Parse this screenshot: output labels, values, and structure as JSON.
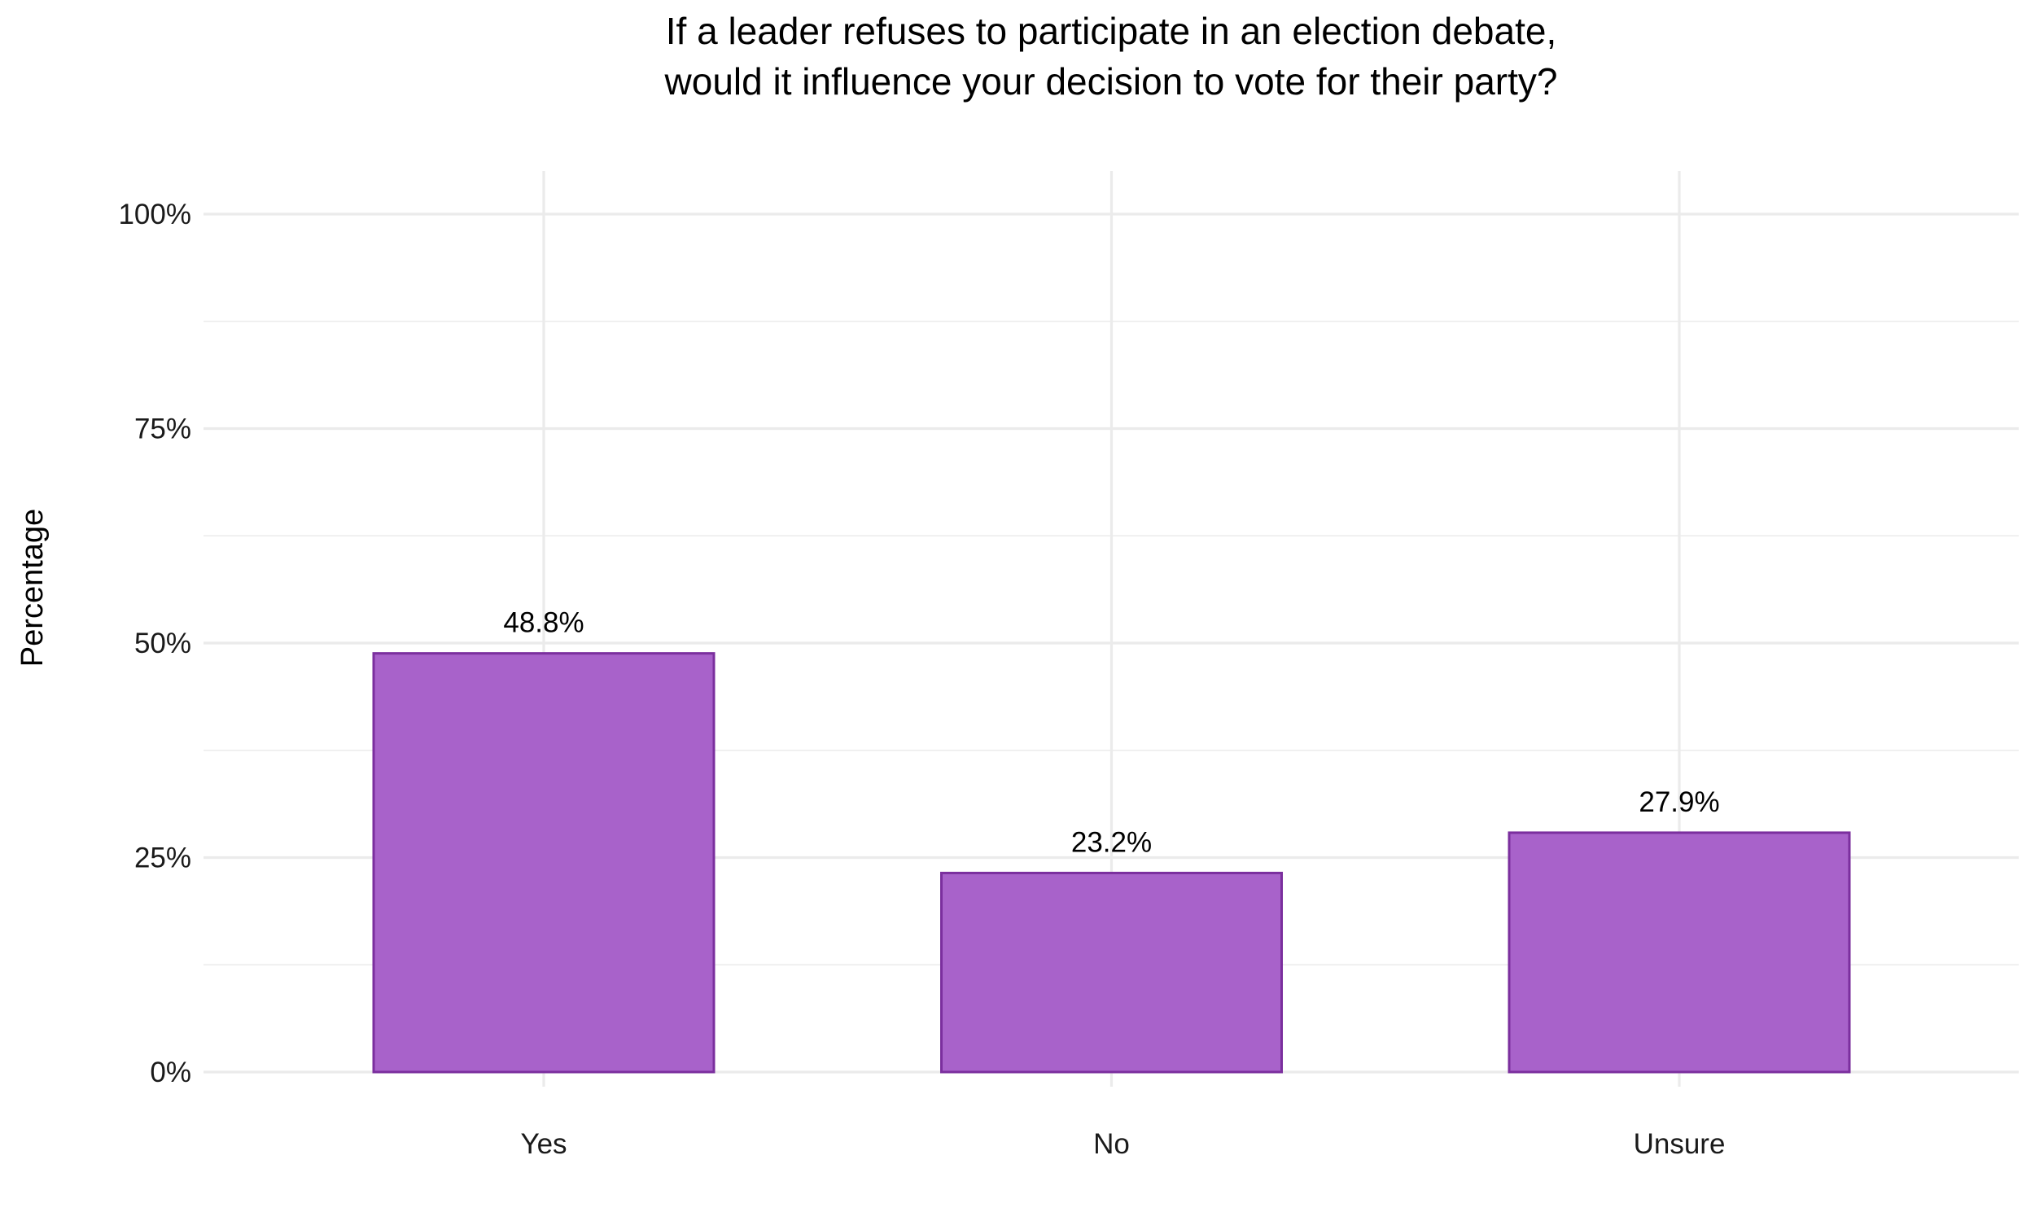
{
  "chart_data": {
    "type": "bar",
    "title": [
      "If a leader refuses to participate in an election debate,",
      "would it influence your decision to vote for their party?"
    ],
    "xlabel": "",
    "ylabel": "Percentage",
    "categories": [
      "Yes",
      "No",
      "Unsure"
    ],
    "values": [
      48.8,
      23.2,
      27.9
    ],
    "data_labels": [
      "48.8%",
      "23.2%",
      "27.9%"
    ],
    "ylim": [
      0,
      100
    ],
    "yticks": [
      0,
      25,
      50,
      75,
      100
    ],
    "ytick_labels": [
      "0%",
      "25%",
      "50%",
      "75%",
      "100%"
    ],
    "grid": true,
    "legend": "none",
    "colors": {
      "fill": "#A862CA",
      "stroke": "#7B2F9E",
      "grid": "#EBEBEB"
    }
  }
}
